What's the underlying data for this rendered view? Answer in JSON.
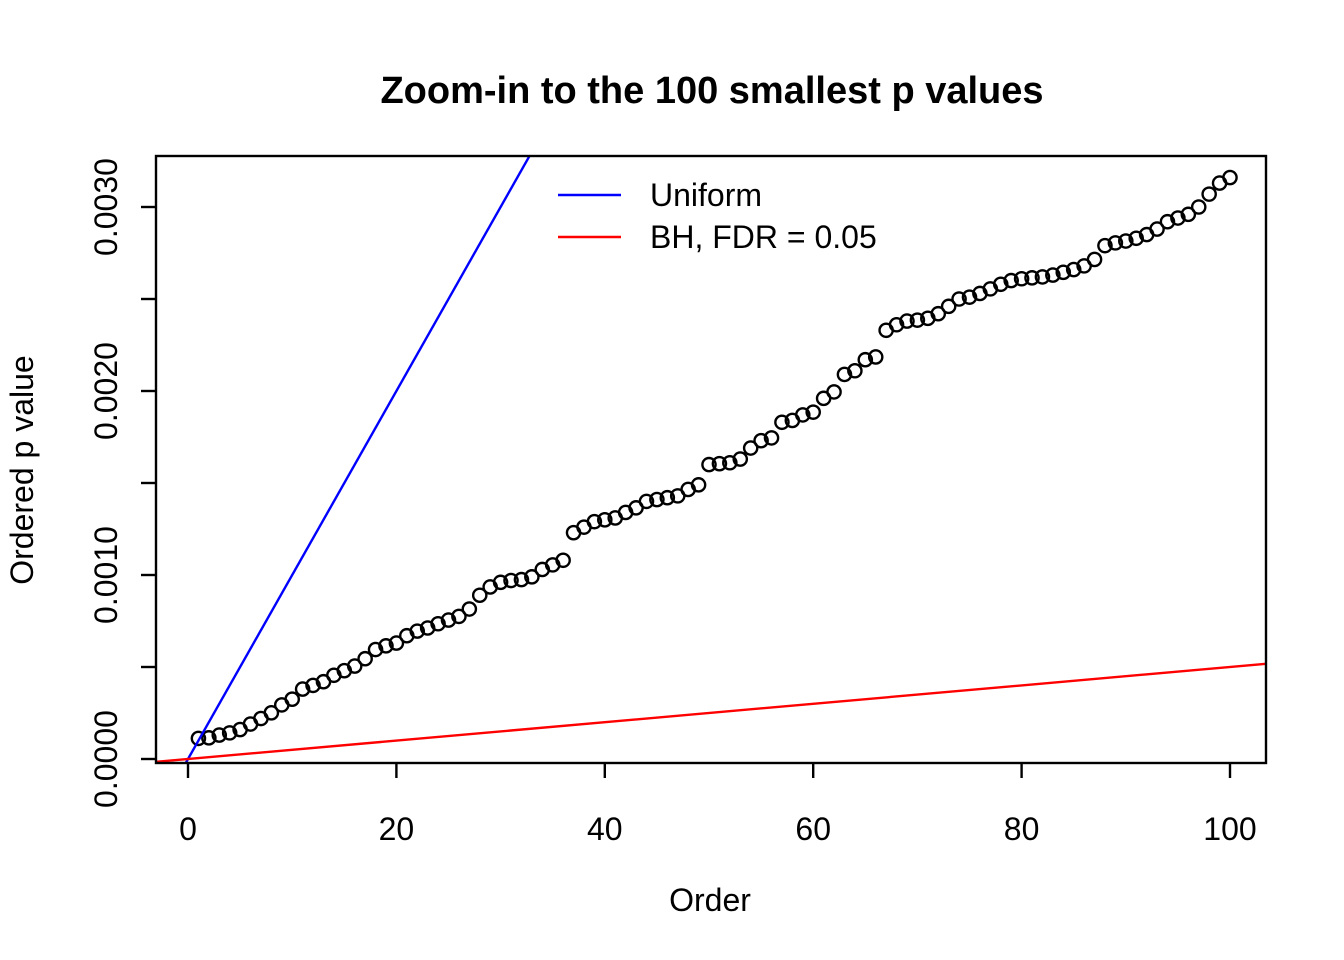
{
  "title": "Zoom-in to the 100 smallest p values",
  "x_axis": {
    "label": "Order",
    "tick_labels": [
      "0",
      "20",
      "40",
      "60",
      "80",
      "100"
    ]
  },
  "y_axis": {
    "label": "Ordered p value",
    "tick_labels": [
      "0.0000",
      "0.0010",
      "0.0020",
      "0.0030"
    ]
  },
  "legend": {
    "position": "top-inside",
    "entries": [
      {
        "label": "Uniform",
        "color": "#0000FF"
      },
      {
        "label": "BH, FDR = 0.05",
        "color": "#FF0000"
      }
    ]
  },
  "colors": {
    "points": "#000000",
    "uniform_line": "#0000FF",
    "bh_line": "#FF0000",
    "axis": "#000000",
    "background": "#FFFFFF"
  },
  "chart_data": {
    "type": "scatter",
    "title": "Zoom-in to the 100 smallest p values",
    "xlabel": "Order",
    "ylabel": "Ordered p value",
    "xlim": [
      -3.07,
      103.45
    ],
    "ylim": [
      -2.17e-05,
      0.003277
    ],
    "grid": false,
    "x_ticks": [
      0,
      20,
      40,
      60,
      80,
      100
    ],
    "y_ticks": [
      0,
      0.0005,
      0.001,
      0.0015,
      0.002,
      0.0025,
      0.003
    ],
    "y_tick_labels": [
      "0.0000",
      "",
      "0.0010",
      "",
      "0.0020",
      "",
      "0.0030"
    ],
    "points": {
      "name": "ordered p values",
      "marker": "open-circle",
      "color": "#000000",
      "x_start": 1,
      "x_step": 1,
      "n": 100,
      "y": [
        0.000112,
        0.000115,
        0.00013,
        0.000142,
        0.00016,
        0.00019,
        0.00022,
        0.000251,
        0.000294,
        0.000325,
        0.00038,
        0.0004,
        0.00042,
        0.000455,
        0.00048,
        0.000505,
        0.000545,
        0.000595,
        0.000615,
        0.00063,
        0.00067,
        0.000695,
        0.000712,
        0.000735,
        0.000755,
        0.000775,
        0.000815,
        0.00089,
        0.000935,
        0.00096,
        0.00097,
        0.000975,
        0.00099,
        0.00103,
        0.001055,
        0.00108,
        0.00123,
        0.00126,
        0.00129,
        0.0013,
        0.00131,
        0.00134,
        0.001365,
        0.0014,
        0.00141,
        0.00142,
        0.00143,
        0.001465,
        0.00149,
        0.0016,
        0.001605,
        0.00161,
        0.00163,
        0.00169,
        0.00173,
        0.001745,
        0.00183,
        0.00184,
        0.00187,
        0.001885,
        0.00196,
        0.001995,
        0.00209,
        0.00211,
        0.00217,
        0.002185,
        0.00233,
        0.00236,
        0.00238,
        0.002385,
        0.002395,
        0.00242,
        0.00246,
        0.0025,
        0.00251,
        0.00253,
        0.002555,
        0.00258,
        0.0026,
        0.00261,
        0.002615,
        0.00262,
        0.00263,
        0.002645,
        0.00266,
        0.00268,
        0.002715,
        0.00279,
        0.002805,
        0.002815,
        0.00283,
        0.00285,
        0.00288,
        0.00292,
        0.00294,
        0.00296,
        0.003,
        0.00307,
        0.00313,
        0.00316
      ]
    },
    "lines": [
      {
        "name": "Uniform",
        "color": "#0000FF",
        "slope": 0.0001,
        "intercept": 0
      },
      {
        "name": "BH, FDR = 0.05",
        "color": "#FF0000",
        "slope": 5e-06,
        "intercept": 0
      }
    ],
    "legend_entries": [
      "Uniform",
      "BH, FDR = 0.05"
    ]
  }
}
